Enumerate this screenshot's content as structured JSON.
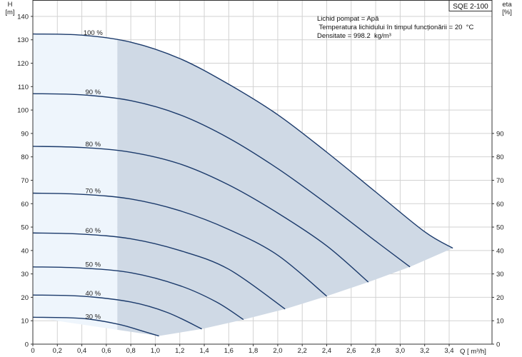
{
  "chart_data": {
    "type": "line",
    "model": "SQE 2-100",
    "annotations": [
      "Lichid pompat = Apă",
      " Temperatura lichidului în timpul funcționării = 20  °C",
      "Densitate = 998.2  kg/m³"
    ],
    "y_label_lines": [
      "H",
      "[m]"
    ],
    "y2_label_lines": [
      "eta",
      "[%]"
    ],
    "x_label": "Q [ m³/h]",
    "xlim": [
      0,
      3.75
    ],
    "ylim": [
      0,
      147
    ],
    "x_ticks": [
      "0",
      "0,2",
      "0,4",
      "0,6",
      "0,8",
      "1,0",
      "1,2",
      "1,4",
      "1,6",
      "1,8",
      "2,0",
      "2,2",
      "2,4",
      "2,6",
      "2,8",
      "3,0",
      "3,2",
      "3,4"
    ],
    "y_ticks": [
      0,
      10,
      20,
      30,
      40,
      50,
      60,
      70,
      80,
      90,
      100,
      110,
      120,
      130,
      140
    ],
    "y2_ticks": [
      0,
      10,
      20,
      30,
      40,
      50,
      60,
      70,
      80,
      90
    ],
    "grid": true,
    "lower_limit_q": 0.69,
    "series": [
      {
        "name": "100 %",
        "x": [
          0,
          0.4,
          0.8,
          1.2,
          1.6,
          2.0,
          2.4,
          2.8,
          3.2,
          3.43
        ],
        "y": [
          132.5,
          132,
          129,
          122,
          111,
          98,
          82,
          65,
          48,
          41
        ]
      },
      {
        "name": "90 %",
        "x": [
          0,
          0.4,
          0.8,
          1.2,
          1.6,
          2.0,
          2.4,
          2.8,
          3.08
        ],
        "y": [
          107,
          106.5,
          104,
          98,
          88,
          75,
          60,
          44,
          33
        ]
      },
      {
        "name": "80 %",
        "x": [
          0,
          0.4,
          0.8,
          1.2,
          1.6,
          2.0,
          2.4,
          2.74
        ],
        "y": [
          84.5,
          84,
          82,
          77,
          68,
          56,
          42,
          26.5
        ]
      },
      {
        "name": "70 %",
        "x": [
          0,
          0.4,
          0.8,
          1.2,
          1.6,
          2.0,
          2.4
        ],
        "y": [
          64.5,
          64,
          62,
          57,
          49,
          38,
          20.5
        ]
      },
      {
        "name": "60 %",
        "x": [
          0,
          0.4,
          0.8,
          1.2,
          1.6,
          2.06
        ],
        "y": [
          47.5,
          47,
          45,
          40,
          32,
          15
        ]
      },
      {
        "name": "50 %",
        "x": [
          0,
          0.4,
          0.8,
          1.2,
          1.5,
          1.72
        ],
        "y": [
          33,
          32.5,
          30.5,
          25,
          18,
          10.5
        ]
      },
      {
        "name": "40 %",
        "x": [
          0,
          0.4,
          0.8,
          1.1,
          1.38
        ],
        "y": [
          21,
          20.5,
          18,
          13.5,
          6.5
        ]
      },
      {
        "name": "30 %",
        "x": [
          0,
          0.4,
          0.7,
          0.9,
          1.03
        ],
        "y": [
          11.5,
          11,
          8.5,
          5.5,
          3.5
        ]
      }
    ],
    "colors": {
      "curve": "#1b3a6b",
      "shade_dark": "#cfd9e5",
      "shade_light": "#eef5fc",
      "grid": "#d2d2d2",
      "frame": "#333333"
    }
  }
}
